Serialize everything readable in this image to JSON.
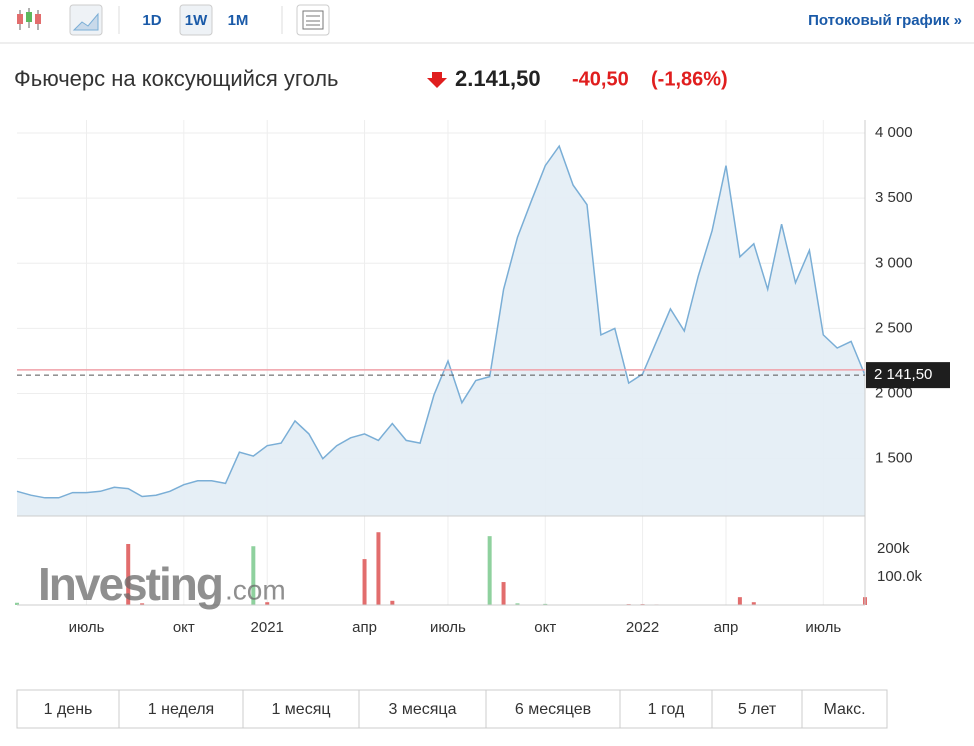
{
  "toolbar": {
    "periods": [
      "1D",
      "1W",
      "1M"
    ],
    "stream_link": "Потоковый график »"
  },
  "header": {
    "title": "Фьючерс на коксующийся уголь",
    "price": "2.141,50",
    "change": "-40,50",
    "change_pct": "(-1,86%)"
  },
  "watermark": {
    "brand": "Investing",
    "suffix": ".com"
  },
  "chart_data": {
    "type": "line",
    "categories": [
      null,
      null,
      null,
      null,
      null,
      "июль",
      null,
      null,
      null,
      null,
      null,
      null,
      "окт",
      null,
      null,
      null,
      null,
      null,
      "2021",
      null,
      null,
      null,
      null,
      null,
      null,
      "апр",
      null,
      null,
      null,
      null,
      null,
      "июль",
      null,
      null,
      null,
      null,
      null,
      null,
      "окт",
      null,
      null,
      null,
      null,
      null,
      null,
      "2022",
      null,
      null,
      null,
      null,
      null,
      "апр",
      null,
      null,
      null,
      null,
      null,
      null,
      "июль",
      null,
      null,
      null
    ],
    "values": [
      1250,
      1220,
      1200,
      1200,
      1240,
      1240,
      1250,
      1280,
      1270,
      1210,
      1220,
      1250,
      1300,
      1330,
      1330,
      1310,
      1550,
      1520,
      1600,
      1620,
      1790,
      1690,
      1500,
      1600,
      1660,
      1690,
      1640,
      1770,
      1640,
      1620,
      1990,
      2250,
      1930,
      2100,
      2130,
      2800,
      3200,
      3480,
      3750,
      3900,
      3600,
      3450,
      2450,
      2500,
      2080,
      2150,
      2400,
      2650,
      2480,
      2900,
      3250,
      3750,
      3050,
      3150,
      2800,
      3300,
      2850,
      3100,
      2450,
      2350,
      2400,
      2141.5
    ],
    "color": "#7aaed6",
    "ylim": [
      1060,
      4100
    ],
    "yticks": [
      {
        "value": 1500,
        "label": "1 500"
      },
      {
        "value": 2000,
        "label": "2 000"
      },
      {
        "value": 2500,
        "label": "2 500"
      },
      {
        "value": 3000,
        "label": "3 000"
      },
      {
        "value": 3500,
        "label": "3 500"
      },
      {
        "value": 4000,
        "label": "4 000"
      }
    ],
    "last_price": {
      "value": 2141.5,
      "label": "2 141,50"
    },
    "reference_line": 2182,
    "volume": [
      8000,
      0,
      0,
      0,
      0,
      0,
      0,
      0,
      218000,
      6000,
      0,
      0,
      0,
      0,
      0,
      0,
      0,
      210000,
      10000,
      0,
      0,
      0,
      0,
      0,
      0,
      164000,
      260000,
      15000,
      0,
      0,
      0,
      0,
      0,
      0,
      246000,
      82000,
      6000,
      0,
      4000,
      0,
      0,
      0,
      0,
      0,
      3000,
      3000,
      2000,
      0,
      0,
      0,
      0,
      0,
      28000,
      10000,
      0,
      0,
      0,
      0,
      0,
      0,
      0,
      28000
    ],
    "volume_colors": [
      "#8fd19e",
      "#e26d6d",
      "#e26d6d",
      "#e26d6d",
      "#e26d6d",
      "#e26d6d",
      "#e26d6d",
      "#e26d6d",
      "#e26d6d",
      "#e26d6d",
      "#e26d6d",
      "#e26d6d",
      "#e26d6d",
      "#e26d6d",
      "#e26d6d",
      "#e26d6d",
      "#e26d6d",
      "#8fd19e",
      "#e26d6d",
      "#e26d6d",
      "#e26d6d",
      "#e26d6d",
      "#e26d6d",
      "#e26d6d",
      "#e26d6d",
      "#e26d6d",
      "#e26d6d",
      "#e26d6d",
      "#e26d6d",
      "#e26d6d",
      "#e26d6d",
      "#e26d6d",
      "#e26d6d",
      "#e26d6d",
      "#8fd19e",
      "#e26d6d",
      "#8fd19e",
      "#e26d6d",
      "#8fd19e",
      "#e26d6d",
      "#e26d6d",
      "#e26d6d",
      "#e26d6d",
      "#e26d6d",
      "#e26d6d",
      "#e26d6d",
      "#e26d6d",
      "#e26d6d",
      "#e26d6d",
      "#e26d6d",
      "#e26d6d",
      "#e26d6d",
      "#e26d6d",
      "#e26d6d",
      "#e26d6d",
      "#e26d6d",
      "#e26d6d",
      "#e26d6d",
      "#e26d6d",
      "#e26d6d",
      "#e26d6d",
      "#e26d6d"
    ],
    "y2lim": [
      0,
      318000
    ],
    "y2ticks": [
      {
        "value": 100000,
        "label": "100.0k"
      },
      {
        "value": 200000,
        "label": "200k"
      }
    ],
    "grid": true
  },
  "ranges": [
    "1 день",
    "1 неделя",
    "1 месяц",
    "3 месяца",
    "6 месяцев",
    "1 год",
    "5 лет",
    "Макс."
  ]
}
